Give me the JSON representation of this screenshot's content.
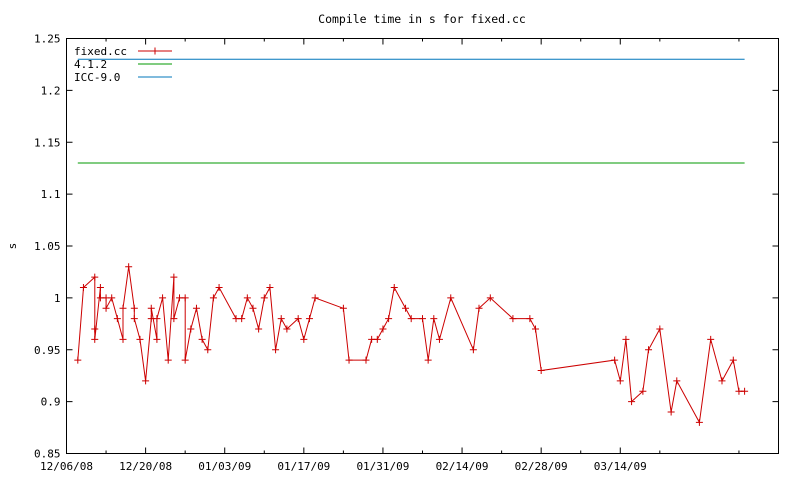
{
  "chart_data": {
    "type": "line",
    "title": "Compile time in s for fixed.cc",
    "xlabel": "",
    "ylabel": "s",
    "ylim": [
      0.85,
      1.25
    ],
    "xlim": [
      "2008-12-06",
      "2009-04-11"
    ],
    "x_ticks": [
      "12/06/08",
      "12/20/08",
      "01/03/09",
      "01/17/09",
      "01/31/09",
      "02/14/09",
      "02/28/09",
      "03/14/09"
    ],
    "y_ticks": [
      "0.85",
      "0.9",
      "0.95",
      "1",
      "1.05",
      "1.1",
      "1.15",
      "1.2",
      "1.25"
    ],
    "grid": false,
    "legend_position": "top-left",
    "colors": {
      "fixed": "#cc0000",
      "gcc412": "#009900",
      "icc90": "#0077bb"
    },
    "series": [
      {
        "name": "fixed.cc",
        "marker": "plus",
        "points": [
          [
            "2008-12-08",
            0.94
          ],
          [
            "2008-12-09",
            1.01
          ],
          [
            "2008-12-11",
            1.02
          ],
          [
            "2008-12-11",
            0.97
          ],
          [
            "2008-12-11",
            0.96
          ],
          [
            "2008-12-12",
            1.01
          ],
          [
            "2008-12-12",
            1.0
          ],
          [
            "2008-12-13",
            1.0
          ],
          [
            "2008-12-13",
            0.99
          ],
          [
            "2008-12-14",
            1.0
          ],
          [
            "2008-12-15",
            0.98
          ],
          [
            "2008-12-16",
            0.96
          ],
          [
            "2008-12-16",
            0.99
          ],
          [
            "2008-12-17",
            1.03
          ],
          [
            "2008-12-18",
            0.99
          ],
          [
            "2008-12-18",
            0.98
          ],
          [
            "2008-12-19",
            0.96
          ],
          [
            "2008-12-20",
            0.92
          ],
          [
            "2008-12-21",
            0.98
          ],
          [
            "2008-12-21",
            0.99
          ],
          [
            "2008-12-22",
            0.96
          ],
          [
            "2008-12-22",
            0.98
          ],
          [
            "2008-12-23",
            1.0
          ],
          [
            "2008-12-24",
            0.94
          ],
          [
            "2008-12-25",
            1.02
          ],
          [
            "2008-12-25",
            0.98
          ],
          [
            "2008-12-26",
            1.0
          ],
          [
            "2008-12-27",
            1.0
          ],
          [
            "2008-12-27",
            0.94
          ],
          [
            "2008-12-28",
            0.97
          ],
          [
            "2008-12-29",
            0.99
          ],
          [
            "2008-12-30",
            0.96
          ],
          [
            "2008-12-31",
            0.95
          ],
          [
            "2009-01-01",
            1.0
          ],
          [
            "2009-01-02",
            1.01
          ],
          [
            "2009-01-05",
            0.98
          ],
          [
            "2009-01-06",
            0.98
          ],
          [
            "2009-01-07",
            1.0
          ],
          [
            "2009-01-08",
            0.99
          ],
          [
            "2009-01-09",
            0.97
          ],
          [
            "2009-01-10",
            1.0
          ],
          [
            "2009-01-11",
            1.01
          ],
          [
            "2009-01-12",
            0.95
          ],
          [
            "2009-01-13",
            0.98
          ],
          [
            "2009-01-14",
            0.97
          ],
          [
            "2009-01-16",
            0.98
          ],
          [
            "2009-01-17",
            0.96
          ],
          [
            "2009-01-18",
            0.98
          ],
          [
            "2009-01-19",
            1.0
          ],
          [
            "2009-01-24",
            0.99
          ],
          [
            "2009-01-25",
            0.94
          ],
          [
            "2009-01-28",
            0.94
          ],
          [
            "2009-01-29",
            0.96
          ],
          [
            "2009-01-30",
            0.96
          ],
          [
            "2009-01-31",
            0.97
          ],
          [
            "2009-02-01",
            0.98
          ],
          [
            "2009-02-02",
            1.01
          ],
          [
            "2009-02-04",
            0.99
          ],
          [
            "2009-02-05",
            0.98
          ],
          [
            "2009-02-07",
            0.98
          ],
          [
            "2009-02-08",
            0.94
          ],
          [
            "2009-02-09",
            0.98
          ],
          [
            "2009-02-10",
            0.96
          ],
          [
            "2009-02-12",
            1.0
          ],
          [
            "2009-02-16",
            0.95
          ],
          [
            "2009-02-17",
            0.99
          ],
          [
            "2009-02-19",
            1.0
          ],
          [
            "2009-02-23",
            0.98
          ],
          [
            "2009-02-26",
            0.98
          ],
          [
            "2009-02-27",
            0.97
          ],
          [
            "2009-02-28",
            0.93
          ],
          [
            "2009-03-13",
            0.94
          ],
          [
            "2009-03-14",
            0.92
          ],
          [
            "2009-03-15",
            0.96
          ],
          [
            "2009-03-16",
            0.9
          ],
          [
            "2009-03-18",
            0.91
          ],
          [
            "2009-03-19",
            0.95
          ],
          [
            "2009-03-21",
            0.97
          ],
          [
            "2009-03-23",
            0.89
          ],
          [
            "2009-03-24",
            0.92
          ],
          [
            "2009-03-28",
            0.88
          ],
          [
            "2009-03-30",
            0.96
          ],
          [
            "2009-04-01",
            0.92
          ],
          [
            "2009-04-03",
            0.94
          ],
          [
            "2009-04-04",
            0.91
          ],
          [
            "2009-04-05",
            0.91
          ]
        ]
      },
      {
        "name": "4.1.2",
        "points": [
          [
            "2008-12-08",
            1.13
          ],
          [
            "2009-04-05",
            1.13
          ]
        ]
      },
      {
        "name": "ICC-9.0",
        "points": [
          [
            "2008-12-08",
            1.23
          ],
          [
            "2009-04-05",
            1.23
          ]
        ]
      }
    ]
  }
}
